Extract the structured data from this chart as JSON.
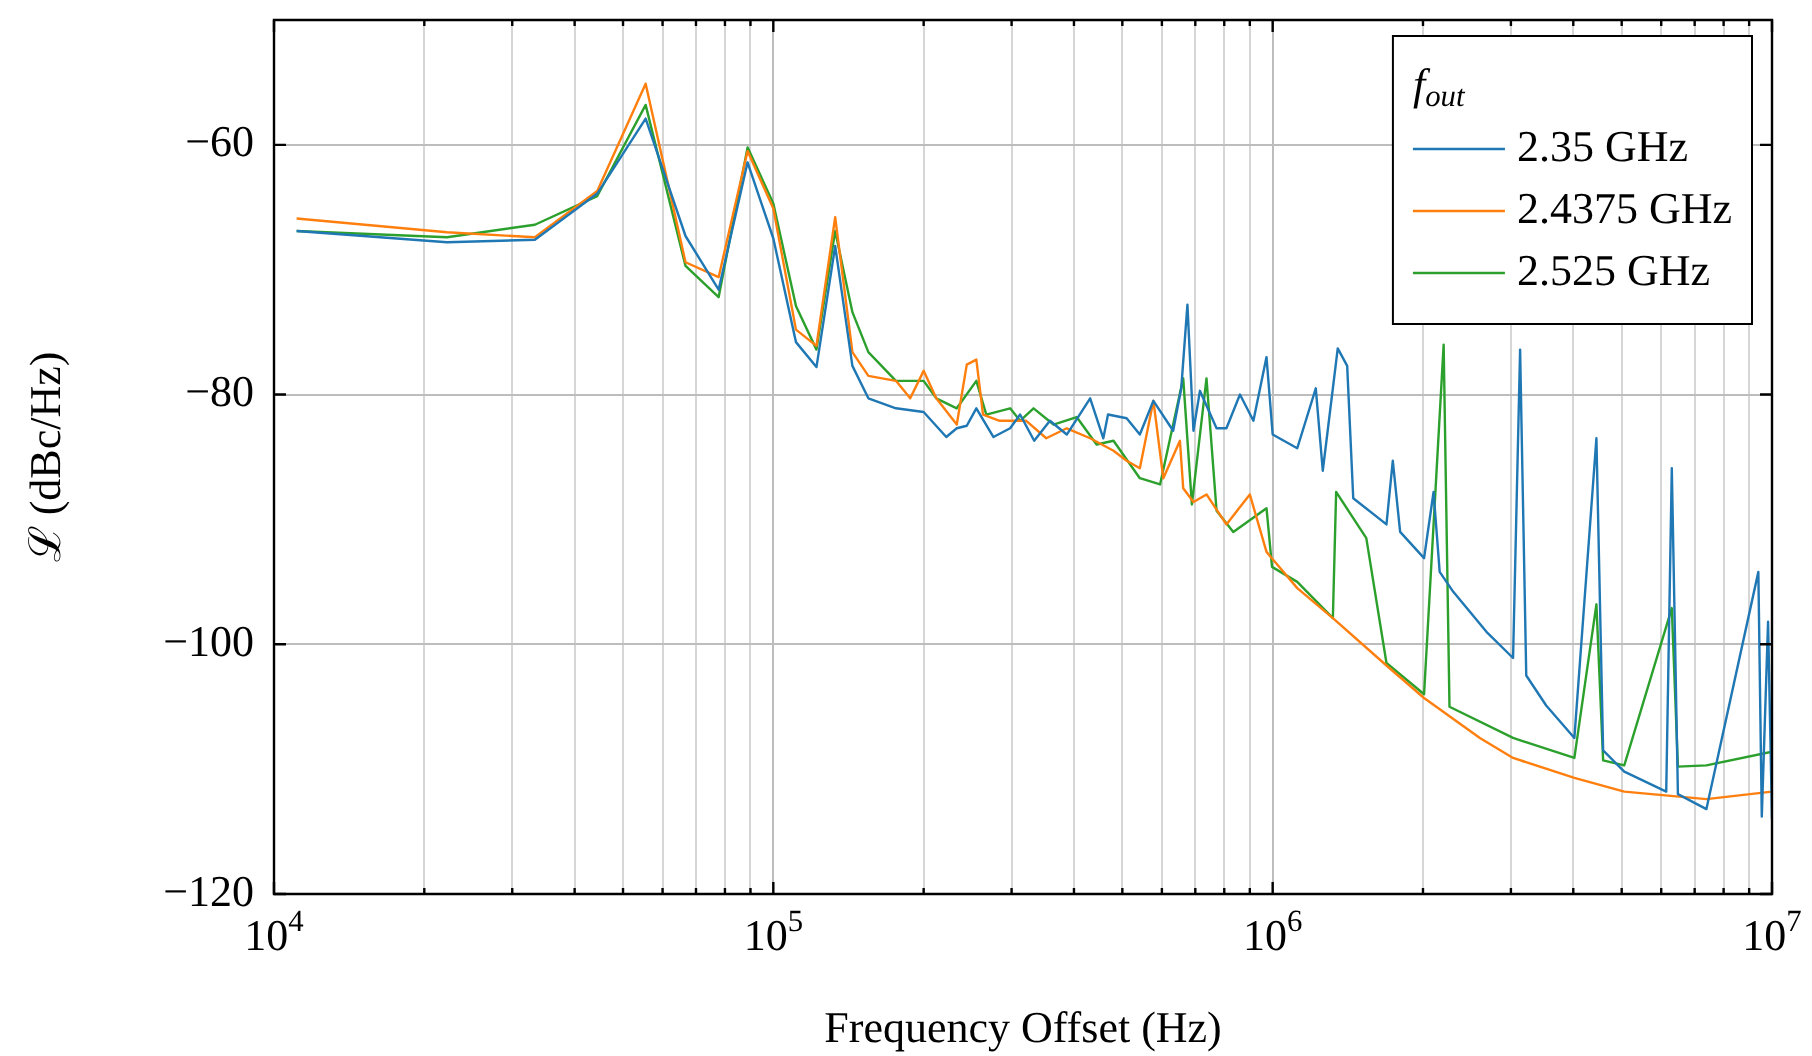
{
  "chart_data": {
    "type": "line",
    "xlabel": "Frequency Offset (Hz)",
    "ylabel": "ℒ (dBc/Hz)",
    "legend_title": "f$_{out}$",
    "legend": "top right",
    "grid": true,
    "log": "x",
    "marker": "none",
    "line_style": "solid",
    "xlim": [
      10000,
      10000000
    ],
    "ylim": [
      -120,
      -50
    ],
    "xticks": [
      {
        "value": 10000,
        "label": "10$^{4}$"
      },
      {
        "value": 20000,
        "label": null
      },
      {
        "value": 30000,
        "label": null
      },
      {
        "value": 40000,
        "label": null
      },
      {
        "value": 50000,
        "label": null
      },
      {
        "value": 60000,
        "label": null
      },
      {
        "value": 70000,
        "label": null
      },
      {
        "value": 80000,
        "label": null
      },
      {
        "value": 90000,
        "label": null
      },
      {
        "value": 100000,
        "label": "10$^{5}$"
      },
      {
        "value": 200000,
        "label": null
      },
      {
        "value": 300000,
        "label": null
      },
      {
        "value": 400000,
        "label": null
      },
      {
        "value": 500000,
        "label": null
      },
      {
        "value": 600000,
        "label": null
      },
      {
        "value": 700000,
        "label": null
      },
      {
        "value": 800000,
        "label": null
      },
      {
        "value": 900000,
        "label": null
      },
      {
        "value": 1000000,
        "label": "10$^{6}$"
      },
      {
        "value": 2000000,
        "label": null
      },
      {
        "value": 3000000,
        "label": null
      },
      {
        "value": 4000000,
        "label": null
      },
      {
        "value": 5000000,
        "label": null
      },
      {
        "value": 6000000,
        "label": null
      },
      {
        "value": 7000000,
        "label": null
      },
      {
        "value": 8000000,
        "label": null
      },
      {
        "value": 9000000,
        "label": null
      },
      {
        "value": 10000000,
        "label": "10$^{7}$"
      }
    ],
    "yticks": [
      {
        "value": -120,
        "label": "−120"
      },
      {
        "value": -100,
        "label": "−100"
      },
      {
        "value": -80,
        "label": "−80"
      },
      {
        "value": -60,
        "label": "−60"
      }
    ],
    "series": [
      {
        "name": "2.35 GHz",
        "color": "#1f77b4",
        "x": [
          11100,
          22200,
          33300,
          44400,
          55500,
          66700,
          77700,
          88800,
          100000,
          111000,
          122000,
          133000,
          144000,
          155000,
          176000,
          200000,
          222000,
          233000,
          244000,
          255000,
          276000,
          298000,
          312000,
          333000,
          358000,
          387000,
          431000,
          458000,
          468000,
          510000,
          542000,
          577000,
          632000,
          656000,
          675000,
          694000,
          715000,
          772000,
          808000,
          860000,
          915000,
          972000,
          1000000,
          1120000,
          1220000,
          1260000,
          1350000,
          1410000,
          1450000,
          1690000,
          1740000,
          1800000,
          2010000,
          2100000,
          2160000,
          2300000,
          2680000,
          3030000,
          3130000,
          3220000,
          3530000,
          4020000,
          4450000,
          4590000,
          5060000,
          6140000,
          6300000,
          6480000,
          7390000,
          9390000,
          9540000,
          9820000,
          10000000
        ],
        "values": [
          -66.9,
          -67.8,
          -67.6,
          -63.9,
          -57.9,
          -67.3,
          -71.6,
          -61.4,
          -67.5,
          -75.8,
          -77.8,
          -68.1,
          -77.7,
          -80.3,
          -81.1,
          -81.4,
          -83.4,
          -82.7,
          -82.5,
          -81.1,
          -83.4,
          -82.7,
          -81.6,
          -83.7,
          -82.1,
          -83.2,
          -80.3,
          -83.5,
          -81.6,
          -81.9,
          -83.2,
          -80.5,
          -82.9,
          -79.5,
          -72.8,
          -82.9,
          -79.7,
          -82.7,
          -82.7,
          -80,
          -82.1,
          -77,
          -83.2,
          -84.3,
          -79.5,
          -86.1,
          -76.3,
          -77.7,
          -88.3,
          -90.4,
          -85.3,
          -91,
          -93.1,
          -87.8,
          -94.2,
          -95.8,
          -99,
          -101.1,
          -76.4,
          -102.5,
          -104.9,
          -107.5,
          -83.5,
          -108.5,
          -110.2,
          -111.8,
          -85.9,
          -112,
          -113.2,
          -94.2,
          -113.8,
          -98.2,
          -114
        ]
      },
      {
        "name": "2.4375 GHz",
        "color": "#ff7f0e",
        "x": [
          11100,
          22200,
          33300,
          44400,
          55500,
          66700,
          77700,
          88800,
          100000,
          111000,
          122000,
          133000,
          144000,
          155000,
          176000,
          188000,
          200000,
          212000,
          233000,
          244000,
          255000,
          263000,
          284000,
          321000,
          352000,
          387000,
          431000,
          480000,
          510000,
          542000,
          577000,
          604000,
          652000,
          662000,
          694000,
          737000,
          808000,
          900000,
          972000,
          1120000,
          1320000,
          1690000,
          2010000,
          2600000,
          3030000,
          4020000,
          5060000,
          7390000,
          10000000
        ],
        "values": [
          -65.9,
          -67,
          -67.4,
          -63.7,
          -55.1,
          -69.4,
          -70.6,
          -60.5,
          -65.1,
          -74.8,
          -76.1,
          -65.8,
          -76.6,
          -78.5,
          -78.9,
          -80.3,
          -78.1,
          -80.3,
          -82.4,
          -77.6,
          -77.2,
          -81.6,
          -82.1,
          -82.1,
          -83.5,
          -82.7,
          -83.5,
          -84.5,
          -85.3,
          -85.9,
          -80.5,
          -86.7,
          -83.7,
          -87.5,
          -88.6,
          -88,
          -90.4,
          -88,
          -92.6,
          -95.5,
          -97.9,
          -101.7,
          -104.3,
          -107.5,
          -109.1,
          -110.7,
          -111.8,
          -112.4,
          -111.8
        ]
      },
      {
        "name": "2.525 GHz",
        "color": "#2ca02c",
        "x": [
          11100,
          22200,
          33300,
          44400,
          55500,
          66700,
          77700,
          88800,
          100000,
          111000,
          122000,
          133000,
          144000,
          155000,
          176000,
          200000,
          212000,
          233000,
          255000,
          267000,
          298000,
          312000,
          332000,
          364000,
          405000,
          444000,
          480000,
          542000,
          595000,
          662000,
          689000,
          737000,
          772000,
          834000,
          972000,
          997000,
          1120000,
          1320000,
          1340000,
          1540000,
          1690000,
          2010000,
          2200000,
          2260000,
          3030000,
          4020000,
          4450000,
          4590000,
          5060000,
          6300000,
          6480000,
          7390000,
          10000000
        ],
        "values": [
          -66.9,
          -67.4,
          -66.4,
          -64.1,
          -56.8,
          -69.7,
          -72.2,
          -60.2,
          -64.7,
          -72.9,
          -76.4,
          -66.9,
          -73.4,
          -76.6,
          -78.9,
          -78.9,
          -80.3,
          -81.1,
          -78.9,
          -81.6,
          -81.1,
          -82.1,
          -81.1,
          -82.4,
          -81.8,
          -84,
          -83.7,
          -86.7,
          -87.2,
          -78.7,
          -88.8,
          -78.7,
          -89.3,
          -91,
          -89.1,
          -93.8,
          -95,
          -97.9,
          -87.8,
          -91.5,
          -101.5,
          -104,
          -76,
          -105,
          -107.5,
          -109.1,
          -96.8,
          -109.3,
          -109.7,
          -97.1,
          -109.8,
          -109.7,
          -108.6
        ]
      }
    ]
  }
}
